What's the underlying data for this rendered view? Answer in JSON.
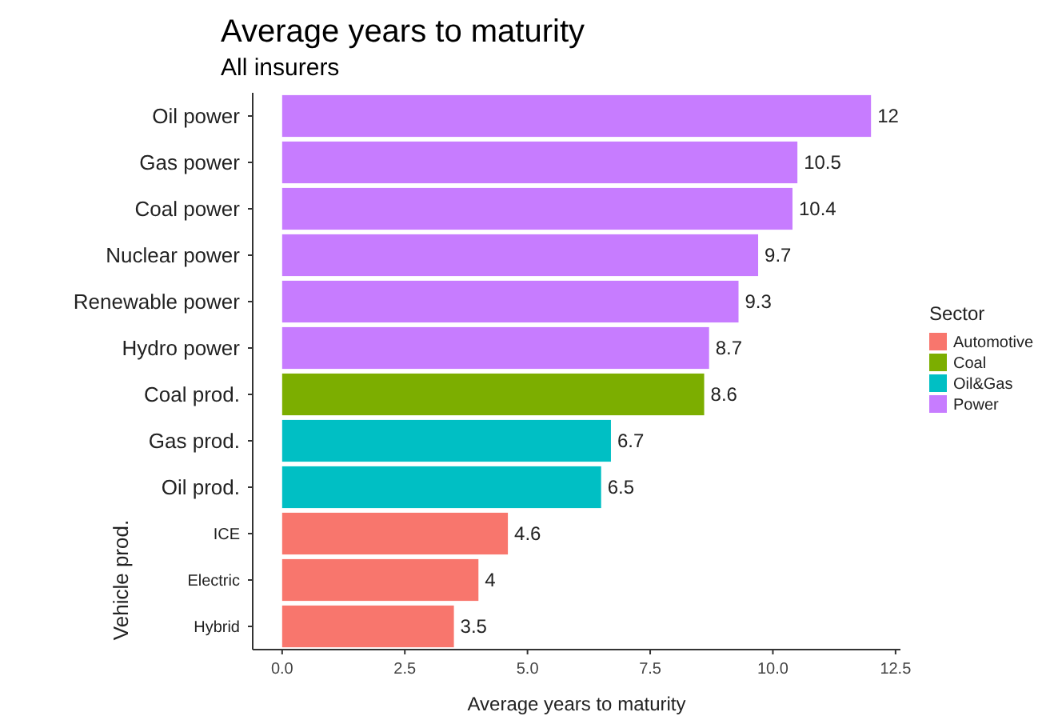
{
  "chart_data": {
    "type": "bar",
    "orientation": "horizontal",
    "title": "Average years to maturity",
    "subtitle": "All insurers",
    "xlabel": "Average years to maturity",
    "legend_title": "Sector",
    "legend": "right",
    "grid": false,
    "data_labels": true,
    "categories": [
      "Oil power",
      "Gas power",
      "Coal power",
      "Nuclear power",
      "Renewable power",
      "Hydro power",
      "Coal prod.",
      "Gas prod.",
      "Oil prod.",
      "ICE",
      "Electric",
      "Hybrid"
    ],
    "series": [
      {
        "name": "Automotive",
        "color": "#f8766d",
        "values": [
          null,
          null,
          null,
          null,
          null,
          null,
          null,
          null,
          null,
          4.6,
          4,
          3.5
        ]
      },
      {
        "name": "Coal",
        "color": "#7cae00",
        "values": [
          null,
          null,
          null,
          null,
          null,
          null,
          8.6,
          null,
          null,
          null,
          null,
          null
        ]
      },
      {
        "name": "Oil&Gas",
        "color": "#00bfc4",
        "values": [
          null,
          null,
          null,
          null,
          null,
          null,
          null,
          6.7,
          6.5,
          null,
          null,
          null
        ]
      },
      {
        "name": "Power",
        "color": "#c77cff",
        "values": [
          12,
          10.5,
          10.4,
          9.7,
          9.3,
          8.7,
          null,
          null,
          null,
          null,
          null,
          null
        ]
      }
    ],
    "xlim": [
      -0.6,
      12.6
    ],
    "xticks": [
      {
        "value": 0,
        "label": "0.0"
      },
      2.5,
      {
        "value": 5,
        "label": "5.0"
      },
      7.5,
      {
        "value": 10,
        "label": "10.0"
      },
      12.5
    ],
    "annotations": [
      "Vehicle prod."
    ]
  }
}
